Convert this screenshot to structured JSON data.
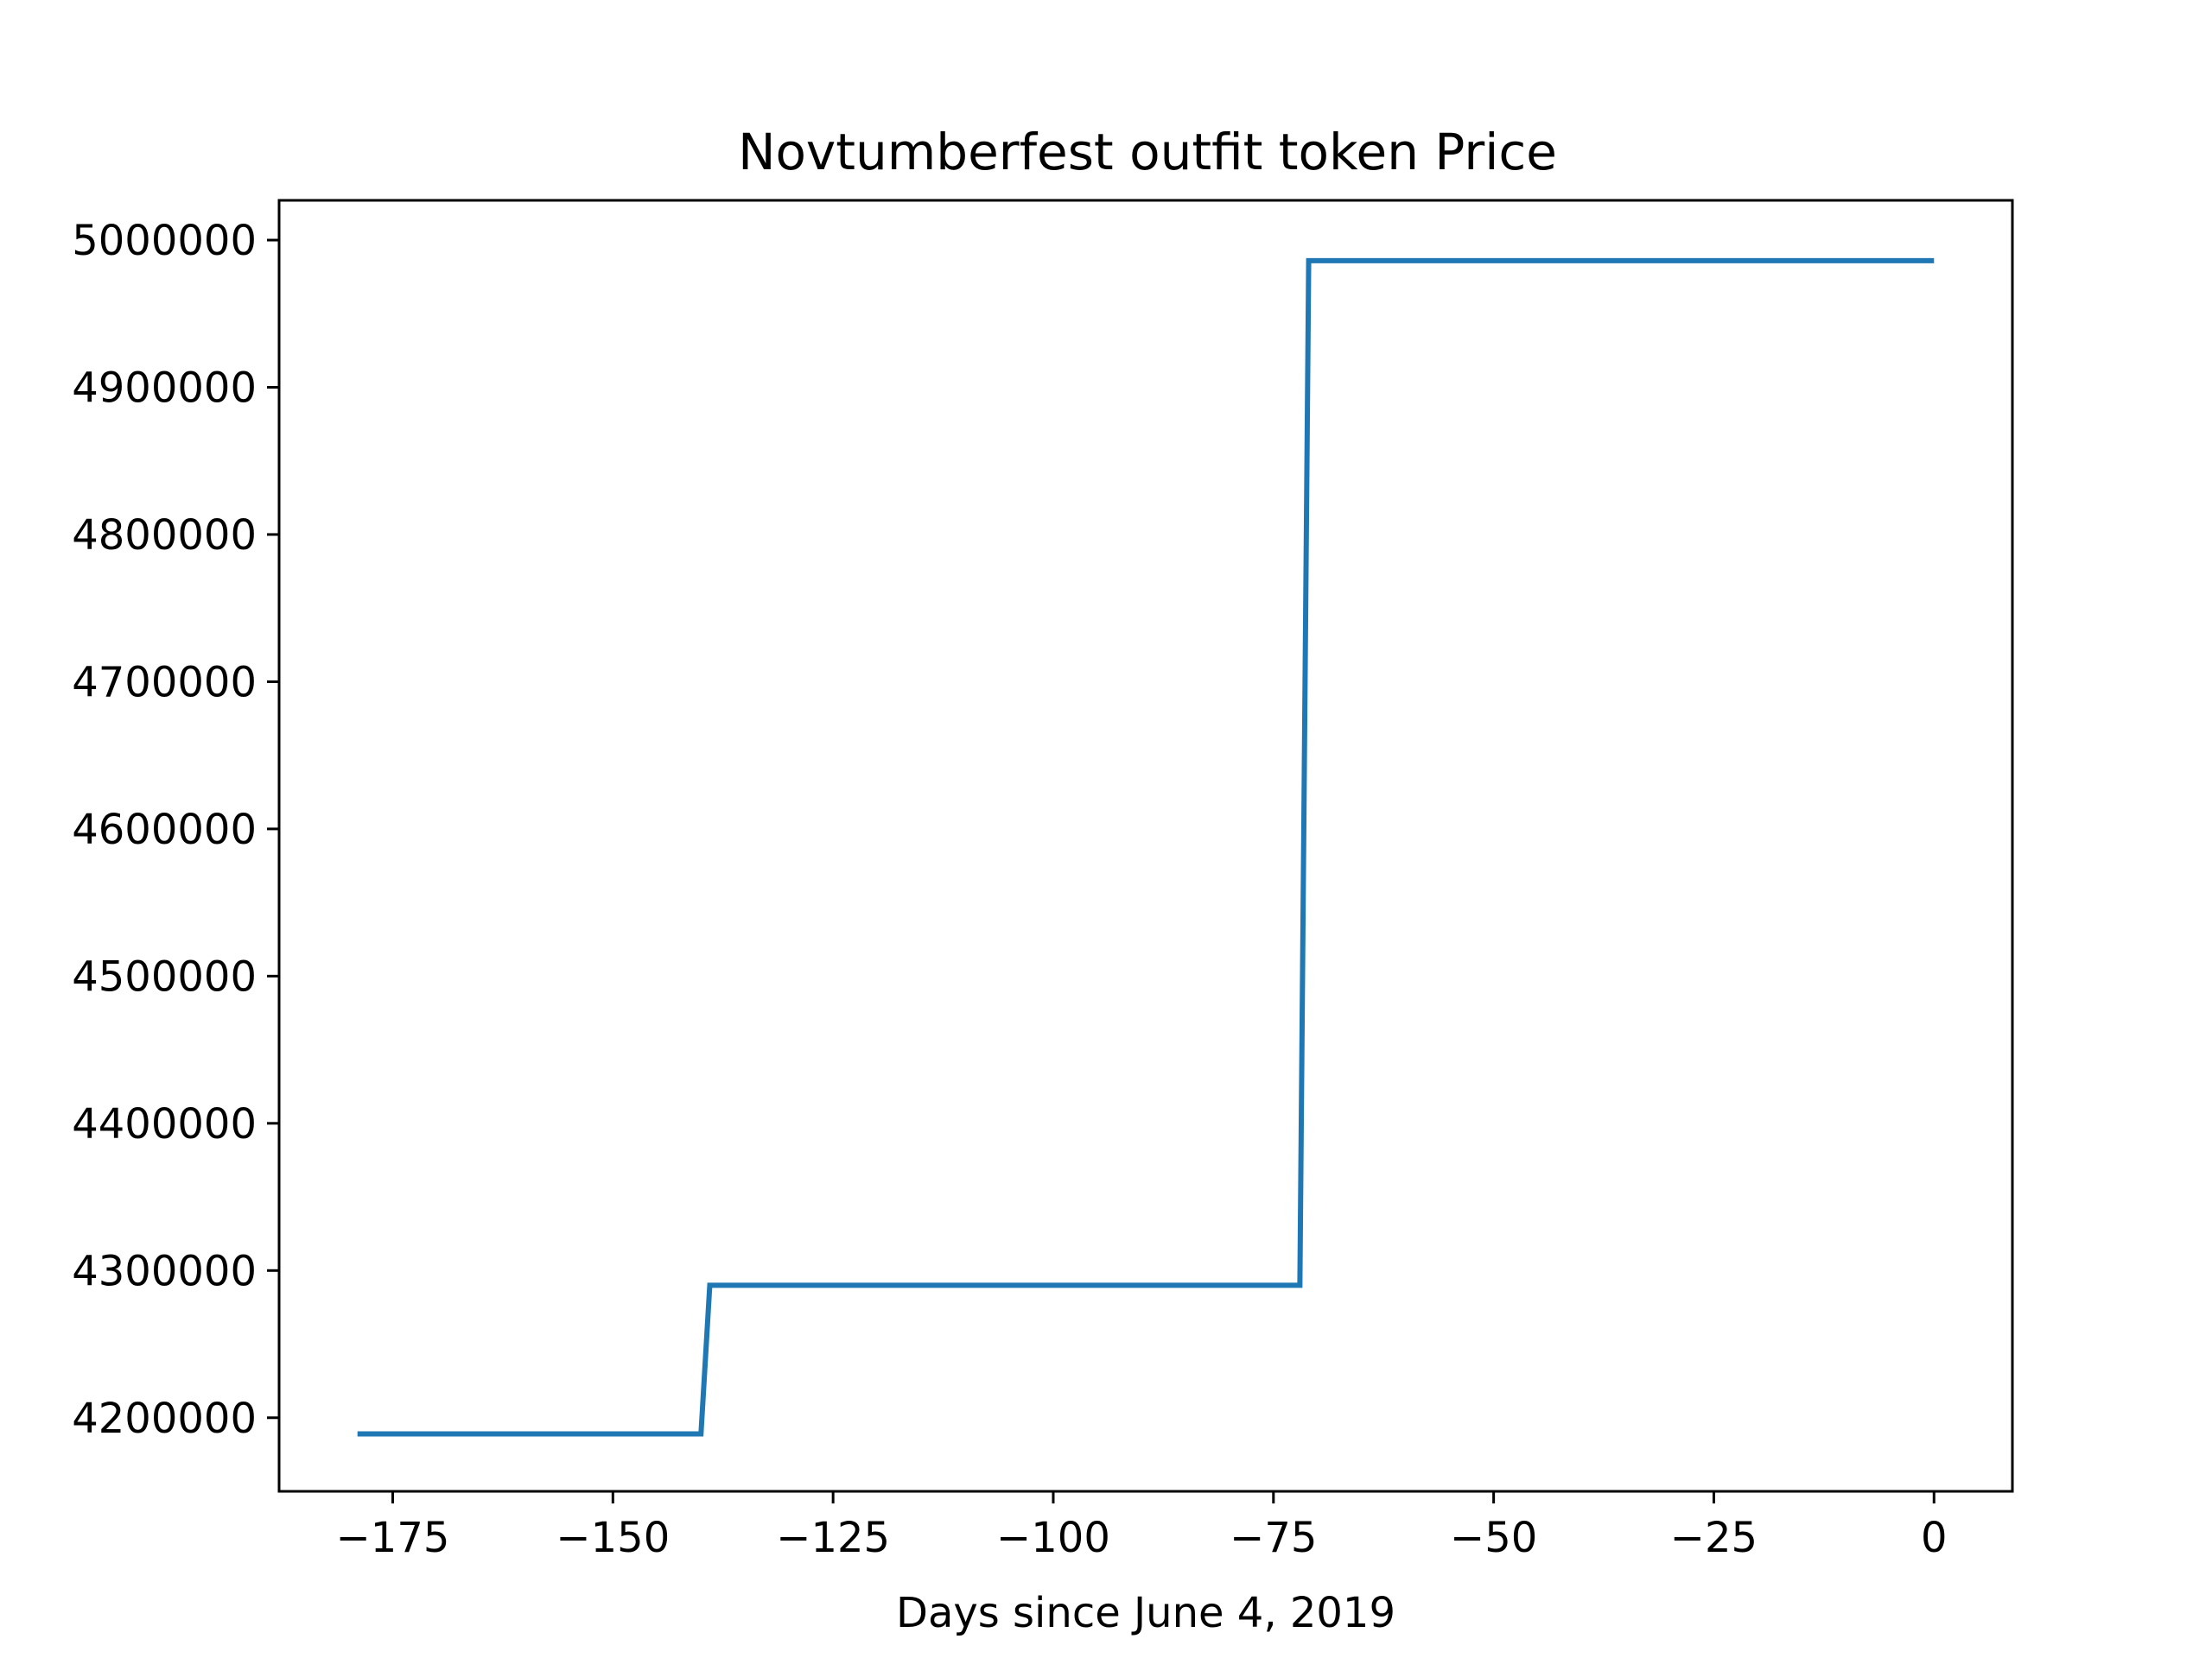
{
  "chart_data": {
    "type": "line",
    "title": "Novtumberfest outfit token Price",
    "xlabel": "Days since June 4, 2019",
    "ylabel": "",
    "xlim": [
      -187.9,
      8.9
    ],
    "ylim": [
      4150000,
      5027000
    ],
    "xticks": [
      -175,
      -150,
      -125,
      -100,
      -75,
      -50,
      -25,
      0
    ],
    "xtick_labels": [
      "−175",
      "−150",
      "−125",
      "−100",
      "−75",
      "−50",
      "−25",
      "0"
    ],
    "yticks": [
      4200000,
      4300000,
      4400000,
      4500000,
      4600000,
      4700000,
      4800000,
      4900000,
      5000000
    ],
    "ytick_labels": [
      "4200000",
      "4300000",
      "4400000",
      "4500000",
      "4600000",
      "4700000",
      "4800000",
      "4900000",
      "5000000"
    ],
    "grid": false,
    "series": [
      {
        "color": "#1f77b4",
        "x": [
          -179,
          -140,
          -139,
          -72,
          -71,
          0
        ],
        "y": [
          4189000,
          4189000,
          4290000,
          4290000,
          4986000,
          4986000
        ]
      }
    ]
  }
}
